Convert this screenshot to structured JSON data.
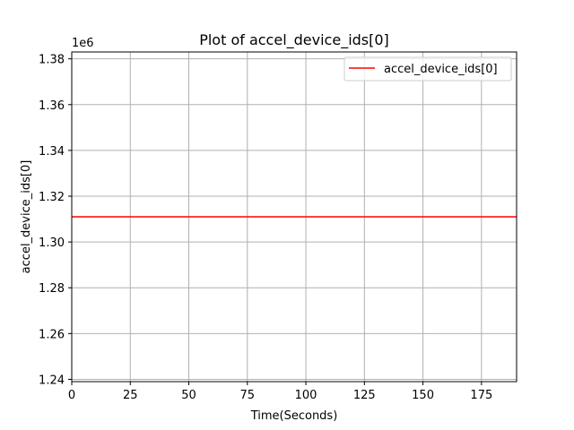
{
  "chart_data": {
    "type": "line",
    "title": "Plot of accel_device_ids[0]",
    "xlabel": "Time(Seconds)",
    "ylabel": "accel_device_ids[0]",
    "offset_text": "1e6",
    "xlim": [
      0,
      190
    ],
    "ylim": [
      1239000,
      1383000
    ],
    "x_ticks": [
      0,
      25,
      50,
      75,
      100,
      125,
      150,
      175
    ],
    "y_ticks": [
      1.24,
      1.26,
      1.28,
      1.3,
      1.32,
      1.34,
      1.36,
      1.38
    ],
    "y_tick_scale": 1000000,
    "grid": true,
    "legend_position": "top-right",
    "series": [
      {
        "name": "accel_device_ids[0]",
        "color": "#ff0000",
        "x": [
          0,
          190
        ],
        "y": [
          1311000,
          1311000
        ]
      }
    ]
  }
}
